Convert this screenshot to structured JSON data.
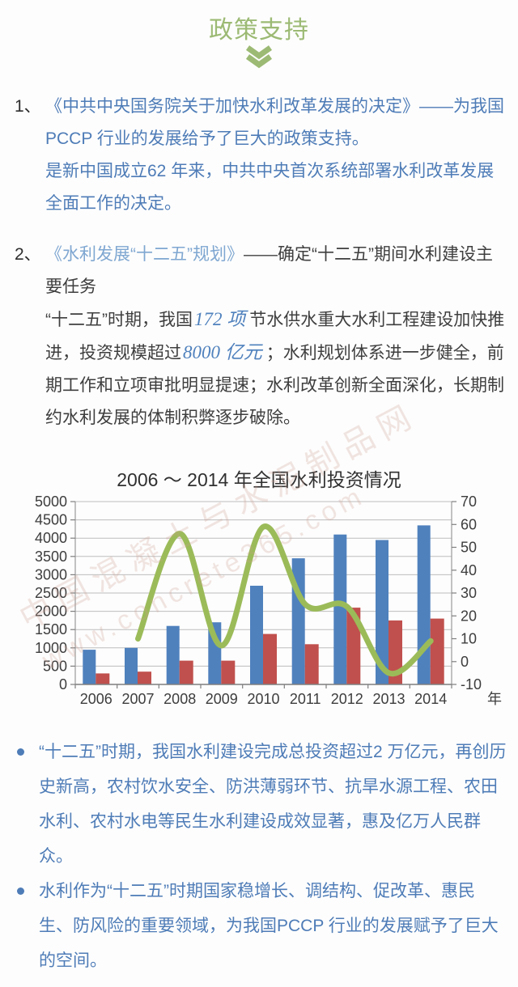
{
  "header": {
    "title": "政策支持",
    "chevron_icon": "double-chevron-down"
  },
  "colors": {
    "title_green": "#9cba74",
    "text_blue": "#4e7cb7",
    "text_lightblue": "#7fa7d1",
    "text_dark": "#3e3e3e",
    "highlight_blue_italic": "#4f81bd",
    "bar_blue": "#4f81bd",
    "bar_red": "#c0504d",
    "line_green": "#9bbb59",
    "gridline_gray": "#bdbdbd"
  },
  "paragraphs": [
    {
      "number": "1、",
      "runs": [
        {
          "text": "《中共中央国务院关于加快水利改革发展的决定》——为我国PCCP 行业的发展给予了巨大的政策支持。",
          "style": "blue",
          "break_after": true
        },
        {
          "text": "是新中国成立62 年来，中共中央首次系统部署水利改革发展全面工作的决定。",
          "style": "blue"
        }
      ]
    },
    {
      "number": "2、",
      "runs": [
        {
          "text": "《水利发展“十二五”规划》",
          "style": "lightblue"
        },
        {
          "text": "——确定“十二五”期间水利建设主要任务",
          "style": "dark",
          "break_after": true
        },
        {
          "text": "“十二五”时期，我国",
          "style": "dark"
        },
        {
          "text": "172 项",
          "style": "bluenum"
        },
        {
          "text": "节水供水重大水利工程建设加快推进，投资规模超过",
          "style": "dark"
        },
        {
          "text": "8000 亿元",
          "style": "bluenum"
        },
        {
          "text": "；水利规划体系进一步健全，前期工作和立项审批明显提速；水利改革创新全面深化，长期制约水利发展的体制积弊逐步破除。",
          "style": "dark"
        }
      ]
    }
  ],
  "chart_data": {
    "type": "bar",
    "title": "2006 ～ 2014 年全国水利投资情况",
    "categories": [
      "2006",
      "2007",
      "2008",
      "2009",
      "2010",
      "2011",
      "2012",
      "2013",
      "2014"
    ],
    "series": [
      {
        "name": "bar-blue-investment",
        "type": "bar",
        "axis": "left",
        "color": "#4f81bd",
        "values": [
          950,
          1000,
          1600,
          1700,
          2700,
          3450,
          4100,
          3950,
          4350
        ]
      },
      {
        "name": "bar-red-investment",
        "type": "bar",
        "axis": "left",
        "color": "#c0504d",
        "values": [
          300,
          350,
          650,
          650,
          1380,
          1100,
          2100,
          1750,
          1800
        ]
      },
      {
        "name": "line-green-growth-rate",
        "type": "line",
        "axis": "right",
        "color": "#9bbb59",
        "values": [
          null,
          10,
          56,
          7,
          59,
          25,
          24,
          -5,
          9
        ]
      }
    ],
    "left_axis": {
      "min": 0,
      "max": 5000,
      "step": 500
    },
    "right_axis": {
      "min": -10,
      "max": 70,
      "step": 10
    },
    "x_axis_unit": "年",
    "grid": true,
    "legend": "none"
  },
  "bullets": [
    {
      "text": "“十二五”时期，我国水利建设完成总投资超过2 万亿元，再创历史新高，农村饮水安全、防洪薄弱环节、抗旱水源工程、农田水利、农村水电等民生水利建设成效显著，惠及亿万人民群众。"
    },
    {
      "text": "水利作为“十二五”时期国家稳增长、调结构、促改革、惠民生、防风险的重要领域，为我国PCCP 行业的发展赋予了巨大的空间。"
    }
  ],
  "watermark": {
    "line1": "中国混凝土与水泥制品网",
    "line2": "www.concrete365.com"
  }
}
